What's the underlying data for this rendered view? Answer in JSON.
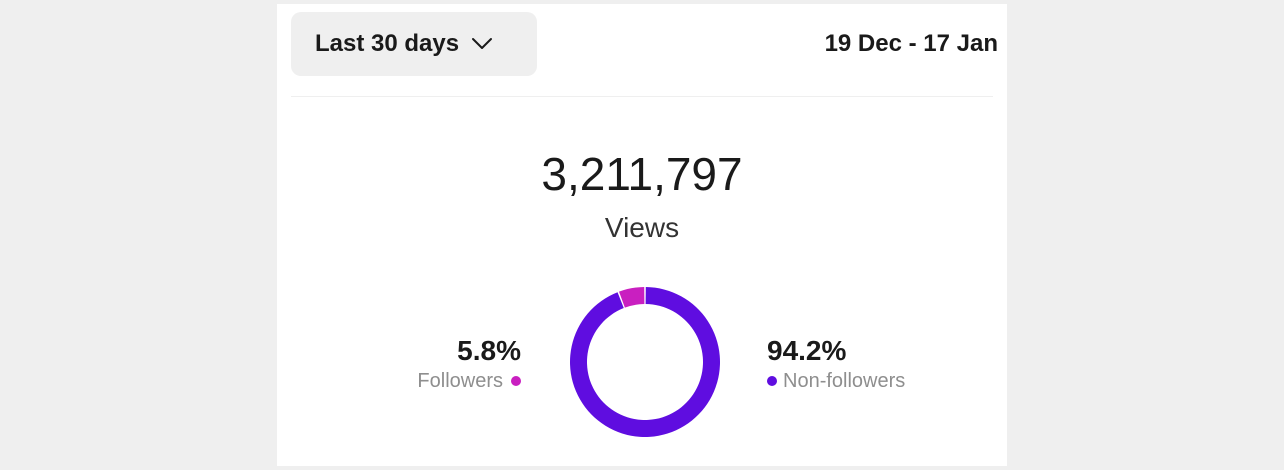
{
  "filter": {
    "range_label": "Last 30 days",
    "chevron_icon": "chevron-down-icon"
  },
  "date_range": "19 Dec - 17 Jan",
  "summary": {
    "total": "3,211,797",
    "label": "Views"
  },
  "breakdown": {
    "followers": {
      "percent_label": "5.8%",
      "label": "Followers",
      "value": 5.8,
      "color": "#c91fc0"
    },
    "non_followers": {
      "percent_label": "94.2%",
      "label": "Non-followers",
      "value": 94.2,
      "color": "#5f0de0"
    }
  }
}
